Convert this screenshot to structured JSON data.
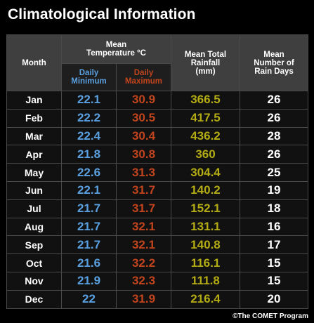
{
  "title": "Climatological Information",
  "credit": "©The COMET Program",
  "headers": {
    "month": "Month",
    "temp_line1": "Mean",
    "temp_line2": "Temperature °C",
    "daily_min_1": "Daily",
    "daily_min_2": "Minimum",
    "daily_max_1": "Daily",
    "daily_max_2": "Maximum",
    "rain_1": "Mean Total",
    "rain_2": "Rainfall",
    "rain_3": "(mm)",
    "days_1": "Mean",
    "days_2": "Number of",
    "days_3": "Rain Days"
  },
  "colors": {
    "min": "#5aa0e0",
    "max": "#c1441d",
    "rain": "#b3ac14",
    "days": "#ffffff"
  },
  "chart_data": {
    "type": "table",
    "title": "Climatological Information",
    "columns": [
      "Month",
      "Daily Minimum",
      "Daily Maximum",
      "Mean Total Rainfall (mm)",
      "Mean Number of Rain Days"
    ],
    "rows": [
      {
        "month": "Jan",
        "min": "22.1",
        "max": "30.9",
        "rain": "366.5",
        "days": "26"
      },
      {
        "month": "Feb",
        "min": "22.2",
        "max": "30.5",
        "rain": "417.5",
        "days": "26"
      },
      {
        "month": "Mar",
        "min": "22.4",
        "max": "30.4",
        "rain": "436.2",
        "days": "28"
      },
      {
        "month": "Apr",
        "min": "21.8",
        "max": "30.8",
        "rain": "360",
        "days": "26"
      },
      {
        "month": "May",
        "min": "22.6",
        "max": "31.3",
        "rain": "304.4",
        "days": "25"
      },
      {
        "month": "Jun",
        "min": "22.1",
        "max": "31.7",
        "rain": "140.2",
        "days": "19"
      },
      {
        "month": "Jul",
        "min": "21.7",
        "max": "31.7",
        "rain": "152.1",
        "days": "18"
      },
      {
        "month": "Aug",
        "min": "21.7",
        "max": "32.1",
        "rain": "131.1",
        "days": "16"
      },
      {
        "month": "Sep",
        "min": "21.7",
        "max": "32.1",
        "rain": "140.8",
        "days": "17"
      },
      {
        "month": "Oct",
        "min": "21.6",
        "max": "32.2",
        "rain": "116.1",
        "days": "15"
      },
      {
        "month": "Nov",
        "min": "21.9",
        "max": "32.3",
        "rain": "111.8",
        "days": "15"
      },
      {
        "month": "Dec",
        "min": "22",
        "max": "31.9",
        "rain": "216.4",
        "days": "20"
      }
    ]
  }
}
